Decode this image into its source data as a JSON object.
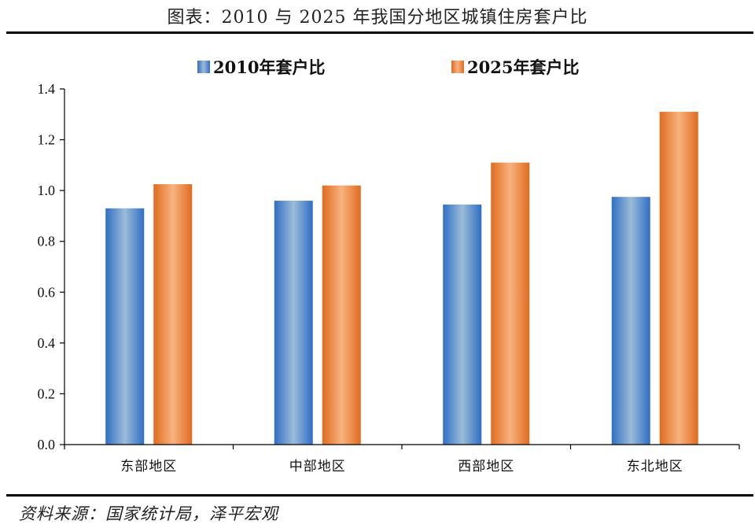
{
  "title": "图表：2010 与 2025 年我国分地区城镇住房套户比",
  "source": "资料来源：国家统计局，泽平宏观",
  "colors": {
    "series_2010_dark": "#2f6fc4",
    "series_2010_light": "#9bbbd8",
    "series_2025_dark": "#e06b20",
    "series_2025_light": "#f7b37f"
  },
  "chart_data": {
    "type": "bar",
    "title": "图表：2010 与 2025 年我国分地区城镇住房套户比",
    "categories": [
      "东部地区",
      "中部地区",
      "西部地区",
      "东北地区"
    ],
    "series": [
      {
        "name": "2010年套户比",
        "values": [
          0.93,
          0.96,
          0.945,
          0.975
        ]
      },
      {
        "name": "2025年套户比",
        "values": [
          1.025,
          1.02,
          1.11,
          1.31
        ]
      }
    ],
    "ylim": [
      0,
      1.4
    ],
    "yticks": [
      "0.0",
      "0.2",
      "0.4",
      "0.6",
      "0.8",
      "1.0",
      "1.2",
      "1.4"
    ],
    "ytick_values": [
      0,
      0.2,
      0.4,
      0.6,
      0.8,
      1.0,
      1.2,
      1.4
    ],
    "legend_position": "top-center",
    "grid": false
  }
}
